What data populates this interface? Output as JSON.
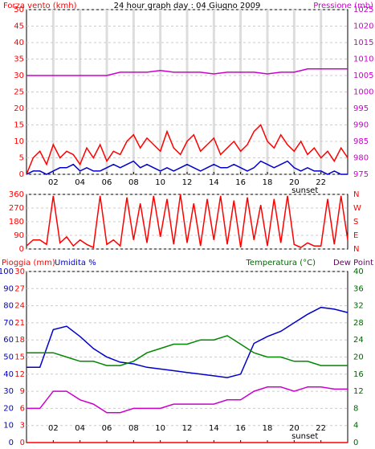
{
  "chart_data": [
    {
      "type": "line",
      "title": "24 hour graph day : 04 Giugno 2009",
      "y_label": "Forza vento (kmh)",
      "y2_label": "Pressione (mb)",
      "xlim": [
        0,
        24
      ],
      "xticks": [
        {
          "value": 2,
          "label": "02"
        },
        {
          "value": 4,
          "label": "04"
        },
        {
          "value": 6,
          "label": "06"
        },
        {
          "value": 8,
          "label": "08"
        },
        {
          "value": 10,
          "label": "10"
        },
        {
          "value": 12,
          "label": "12"
        },
        {
          "value": 14,
          "label": "14"
        },
        {
          "value": 16,
          "label": "16"
        },
        {
          "value": 18,
          "label": "18"
        },
        {
          "value": 20,
          "label": "20"
        },
        {
          "value": 22,
          "label": "22"
        }
      ],
      "annotation": "sunset",
      "annotation_x": 20.8,
      "ylim": [
        0,
        50
      ],
      "yticks": [
        0,
        5,
        10,
        15,
        20,
        25,
        30,
        35,
        40,
        45,
        50
      ],
      "y_color": "#ff0000",
      "y2lim": [
        975,
        1025
      ],
      "y2ticks": [
        975,
        980,
        985,
        990,
        995,
        1000,
        1005,
        1010,
        1015,
        1020,
        1025
      ],
      "y2_color": "#cc00cc",
      "grid": true,
      "series": [
        {
          "color": "#ff0000",
          "x": [
            0,
            0.5,
            1,
            1.5,
            2,
            2.5,
            3,
            3.5,
            4,
            4.5,
            5,
            5.5,
            6,
            6.5,
            7,
            7.5,
            8,
            8.5,
            9,
            9.5,
            10,
            10.5,
            11,
            11.5,
            12,
            12.5,
            13,
            13.5,
            14,
            14.5,
            15,
            15.5,
            16,
            16.5,
            17,
            17.5,
            18,
            18.5,
            19,
            19.5,
            20,
            20.5,
            21,
            21.5,
            22,
            22.5,
            23,
            23.5,
            24
          ],
          "values": [
            0,
            5,
            7,
            3,
            9,
            5,
            7,
            6,
            3,
            8,
            5,
            9,
            4,
            7,
            6,
            10,
            12,
            8,
            11,
            9,
            7,
            13,
            8,
            6,
            10,
            12,
            7,
            9,
            11,
            6,
            8,
            10,
            7,
            9,
            13,
            15,
            10,
            8,
            12,
            9,
            7,
            10,
            6,
            8,
            5,
            7,
            4,
            8,
            5
          ]
        },
        {
          "color": "#0000cc",
          "x": [
            0,
            0.5,
            1,
            1.5,
            2,
            2.5,
            3,
            3.5,
            4,
            4.5,
            5,
            5.5,
            6,
            6.5,
            7,
            7.5,
            8,
            8.5,
            9,
            9.5,
            10,
            10.5,
            11,
            11.5,
            12,
            12.5,
            13,
            13.5,
            14,
            14.5,
            15,
            15.5,
            16,
            16.5,
            17,
            17.5,
            18,
            18.5,
            19,
            19.5,
            20,
            20.5,
            21,
            21.5,
            22,
            22.5,
            23,
            23.5,
            24
          ],
          "values": [
            0,
            1,
            1,
            0,
            1,
            2,
            2,
            3,
            1,
            2,
            1,
            1,
            2,
            3,
            2,
            3,
            4,
            2,
            3,
            2,
            1,
            2,
            1,
            2,
            3,
            2,
            1,
            2,
            3,
            2,
            2,
            3,
            2,
            1,
            2,
            4,
            3,
            2,
            3,
            4,
            2,
            1,
            2,
            1,
            1,
            0,
            1,
            0,
            0
          ]
        },
        {
          "color": "#cc00cc",
          "axis": "y2",
          "x": [
            0,
            1,
            2,
            3,
            4,
            5,
            6,
            7,
            8,
            9,
            10,
            11,
            12,
            13,
            14,
            15,
            16,
            17,
            18,
            19,
            20,
            21,
            22,
            23,
            24
          ],
          "values": [
            1005,
            1005,
            1005,
            1005,
            1005,
            1005,
            1005,
            1006,
            1006,
            1006,
            1006.5,
            1006,
            1006,
            1006,
            1005.5,
            1006,
            1006,
            1006,
            1005.5,
            1006,
            1006,
            1007,
            1007,
            1007,
            1007
          ]
        }
      ]
    },
    {
      "type": "line",
      "xlim": [
        0,
        24
      ],
      "ylim": [
        0,
        360
      ],
      "yticks": [
        0,
        90,
        180,
        270,
        360
      ],
      "y_color": "#ff0000",
      "compass_labels": [
        "N",
        "W",
        "S",
        "E",
        "N"
      ],
      "grid": true,
      "series": [
        {
          "color": "#ff0000",
          "x": [
            0,
            0.5,
            1,
            1.5,
            2,
            2.5,
            3,
            3.5,
            4,
            4.5,
            5,
            5.5,
            6,
            6.5,
            7,
            7.5,
            8,
            8.5,
            9,
            9.5,
            10,
            10.5,
            11,
            11.5,
            12,
            12.5,
            13,
            13.5,
            14,
            14.5,
            15,
            15.5,
            16,
            16.5,
            17,
            17.5,
            18,
            18.5,
            19,
            19.5,
            20,
            20.5,
            21,
            21.5,
            22,
            22.5,
            23,
            23.5,
            24
          ],
          "values": [
            20,
            60,
            60,
            30,
            350,
            40,
            80,
            20,
            60,
            30,
            10,
            350,
            30,
            60,
            20,
            340,
            60,
            300,
            40,
            350,
            80,
            330,
            30,
            360,
            40,
            300,
            20,
            330,
            60,
            350,
            30,
            320,
            10,
            340,
            60,
            290,
            20,
            330,
            40,
            350,
            30,
            10,
            40,
            20,
            20,
            330,
            30,
            350,
            60
          ]
        }
      ]
    },
    {
      "type": "line",
      "y_label": "Pioggia (mm)",
      "y_label_b": "Umidita %",
      "y2_label": "Temperatura (°C)",
      "y2_label_b": "Dew Point",
      "xlim": [
        0,
        24
      ],
      "xticks": [
        {
          "value": 2,
          "label": "02"
        },
        {
          "value": 4,
          "label": "04"
        },
        {
          "value": 6,
          "label": "06"
        },
        {
          "value": 8,
          "label": "08"
        },
        {
          "value": 10,
          "label": "10"
        },
        {
          "value": 12,
          "label": "12"
        },
        {
          "value": 14,
          "label": "14"
        },
        {
          "value": 16,
          "label": "16"
        },
        {
          "value": 18,
          "label": "18"
        },
        {
          "value": 20,
          "label": "20"
        },
        {
          "value": 22,
          "label": "22"
        }
      ],
      "annotation": "sunset",
      "annotation_x": 20.8,
      "ylim": [
        0,
        100
      ],
      "yticks": [
        0,
        10,
        20,
        30,
        40,
        50,
        60,
        70,
        80,
        90,
        100
      ],
      "y_color": "#0000cc",
      "y3lim": [
        0,
        30
      ],
      "y3ticks": [
        0,
        3,
        6,
        9,
        12,
        15,
        18,
        21,
        24,
        27,
        30
      ],
      "y3_color": "#ff0000",
      "y2lim": [
        0,
        40
      ],
      "y2ticks": [
        0,
        4,
        8,
        12,
        16,
        20,
        24,
        28,
        32,
        36,
        40
      ],
      "y2_color": "#006600",
      "grid": true,
      "series": [
        {
          "color": "#ff0000",
          "axis": "y3",
          "x": [
            0,
            1,
            2,
            3,
            4,
            5,
            6,
            7,
            8,
            9,
            10,
            11,
            12,
            13,
            14,
            15,
            16,
            17,
            18,
            19,
            20,
            21,
            22,
            23,
            24
          ],
          "values": [
            0,
            0,
            0,
            0,
            0,
            0,
            0,
            0,
            0,
            0,
            0,
            0,
            0,
            0,
            0,
            0,
            0,
            0,
            0,
            0,
            0,
            0,
            0,
            0,
            0
          ]
        },
        {
          "color": "#0000cc",
          "x": [
            0,
            1,
            2,
            3,
            4,
            5,
            6,
            7,
            8,
            9,
            10,
            11,
            12,
            13,
            14,
            15,
            16,
            17,
            18,
            19,
            20,
            21,
            22,
            23,
            24
          ],
          "values": [
            44,
            44,
            66,
            68,
            62,
            55,
            50,
            47,
            46,
            44,
            43,
            42,
            41,
            40,
            39,
            38,
            40,
            58,
            62,
            65,
            70,
            75,
            79,
            78,
            76
          ]
        },
        {
          "color": "#008800",
          "axis": "y2",
          "x": [
            0,
            1,
            2,
            3,
            4,
            5,
            6,
            7,
            8,
            9,
            10,
            11,
            12,
            13,
            14,
            15,
            16,
            17,
            18,
            19,
            20,
            21,
            22,
            23,
            24
          ],
          "values": [
            21,
            21,
            21,
            20,
            19,
            19,
            18,
            18,
            19,
            21,
            22,
            23,
            23,
            24,
            24,
            25,
            23,
            21,
            20,
            20,
            19,
            19,
            18,
            18,
            18
          ]
        },
        {
          "color": "#cc00cc",
          "axis": "y2",
          "x": [
            0,
            1,
            2,
            3,
            4,
            5,
            6,
            7,
            8,
            9,
            10,
            11,
            12,
            13,
            14,
            15,
            16,
            17,
            18,
            19,
            20,
            21,
            22,
            23,
            24
          ],
          "values": [
            8,
            8,
            12,
            12,
            10,
            9,
            7,
            7,
            8,
            8,
            8,
            9,
            9,
            9,
            9,
            10,
            10,
            12,
            13,
            13,
            12,
            13,
            13,
            12.5,
            12.5
          ]
        }
      ]
    }
  ]
}
